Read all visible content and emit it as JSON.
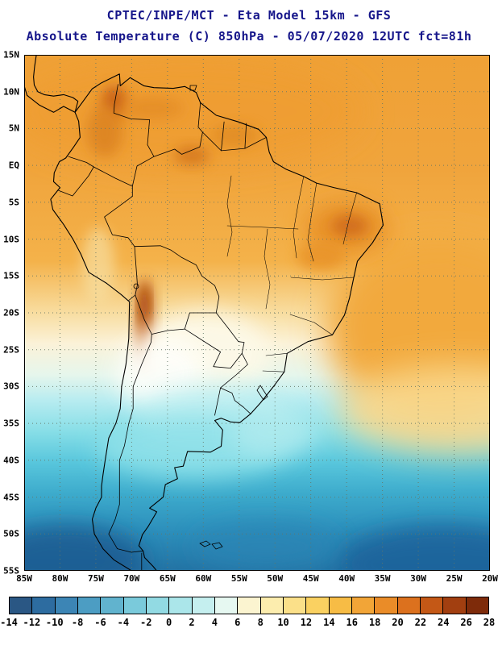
{
  "title": {
    "line1": "CPTEC/INPE/MCT -  Eta Model 15km - GFS",
    "line2": "Absolute Temperature (C) 850hPa - 05/07/2020 12UTC fct=81h"
  },
  "map": {
    "lat_labels": [
      "15N",
      "10N",
      "5N",
      "EQ",
      "5S",
      "10S",
      "15S",
      "20S",
      "25S",
      "30S",
      "35S",
      "40S",
      "45S",
      "50S",
      "55S"
    ],
    "lon_labels": [
      "85W",
      "80W",
      "75W",
      "70W",
      "65W",
      "60W",
      "55W",
      "50W",
      "45W",
      "40W",
      "35W",
      "30W",
      "25W",
      "20W"
    ]
  },
  "colorbar": {
    "unit": "C",
    "tick_labels": [
      "-14",
      "-12",
      "-10",
      "-8",
      "-6",
      "-4",
      "-2",
      "0",
      "2",
      "4",
      "6",
      "8",
      "10",
      "12",
      "14",
      "16",
      "18",
      "20",
      "22",
      "24",
      "26",
      "28"
    ],
    "colors": [
      "#2a5784",
      "#2d6ca0",
      "#3c85b5",
      "#4c9dc3",
      "#61b3ce",
      "#7acadb",
      "#92dae3",
      "#abe6ea",
      "#c5efef",
      "#e6f8f1",
      "#fbf4d0",
      "#fcedae",
      "#fbe089",
      "#fad161",
      "#f7bc45",
      "#f2a537",
      "#ea8c28",
      "#dc711e",
      "#c45816",
      "#a23f10",
      "#7e2b0a"
    ]
  },
  "colors": {
    "title_text": "#15158a",
    "axis_text": "#000000",
    "grid": "#667766",
    "map_outline": "#000000"
  }
}
